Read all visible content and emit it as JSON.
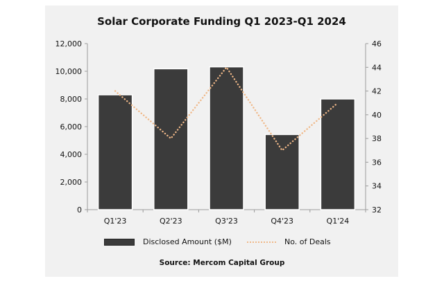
{
  "chart_data": {
    "type": "bar",
    "title": "Solar Corporate Funding Q1 2023-Q1 2024",
    "categories": [
      "Q1'23",
      "Q2'23",
      "Q3'23",
      "Q4'23",
      "Q1'24"
    ],
    "series": [
      {
        "name": "Disclosed Amount ($M)",
        "type": "bar",
        "axis": "left",
        "color": "#3b3b3b",
        "values": [
          8300,
          10180,
          10320,
          5430,
          8000
        ]
      },
      {
        "name": "No. of Deals",
        "type": "line",
        "style": "dotted",
        "axis": "right",
        "color": "#f0b888",
        "values": [
          42,
          38,
          44,
          37,
          41
        ]
      }
    ],
    "y_left": {
      "min": 0,
      "max": 12000,
      "step": 2000,
      "ticks": [
        "0",
        "2,000",
        "4,000",
        "6,000",
        "8,000",
        "10,000",
        "12,000"
      ]
    },
    "y_right": {
      "min": 32,
      "max": 46,
      "step": 2,
      "ticks": [
        "32",
        "34",
        "36",
        "38",
        "40",
        "42",
        "44",
        "46"
      ]
    },
    "xlabel": "",
    "ylabel": "",
    "grid": false,
    "legend_position": "bottom",
    "source": "Source: Mercom Capital Group"
  }
}
